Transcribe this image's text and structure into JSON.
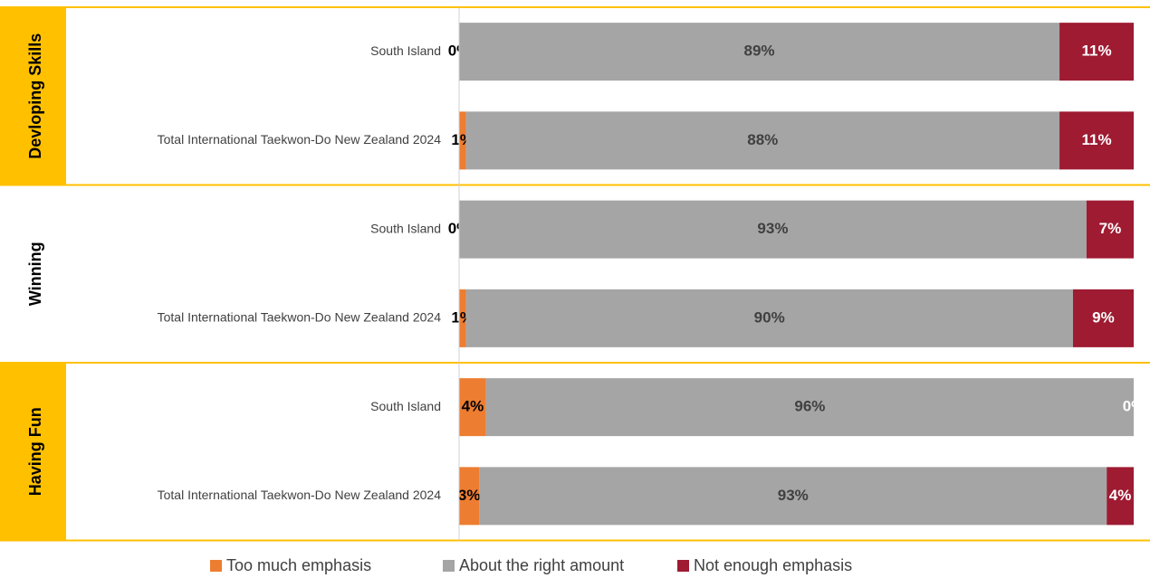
{
  "chart_data": {
    "type": "stacked_bar_horizontal",
    "xlim": [
      0,
      100
    ],
    "groups": [
      {
        "name": "Devloping Skills",
        "color": "#ffc000",
        "categories": [
          "South Island",
          "Total International Taekwon-Do New Zealand 2024"
        ]
      },
      {
        "name": "Winning",
        "categories": [
          "South Island",
          "Total International Taekwon-Do New Zealand 2024"
        ]
      },
      {
        "name": "Having Fun",
        "color": "#ffc000",
        "categories": [
          "South Island",
          "Total International Taekwon-Do New Zealand 2024"
        ]
      }
    ],
    "series": [
      {
        "name": "Too much emphasis",
        "color": "#ed7d31",
        "label_color": "#000000",
        "values": [
          0,
          1,
          0,
          1,
          4,
          3
        ],
        "value_labels": [
          "0%",
          "1%",
          "0%",
          "1%",
          "4%",
          "3%"
        ]
      },
      {
        "name": "About the right amount",
        "color": "#a5a5a5",
        "label_color": "#404040",
        "values": [
          89,
          88,
          93,
          90,
          96,
          93
        ],
        "value_labels": [
          "89%",
          "88%",
          "93%",
          "90%",
          "96%",
          "93%"
        ]
      },
      {
        "name": "Not enough emphasis",
        "color": "#9e1b32",
        "label_color": "#ffffff",
        "values": [
          11,
          11,
          7,
          9,
          0,
          4
        ],
        "value_labels": [
          "11%",
          "11%",
          "7%",
          "9%",
          "0%",
          "4%"
        ]
      }
    ]
  }
}
